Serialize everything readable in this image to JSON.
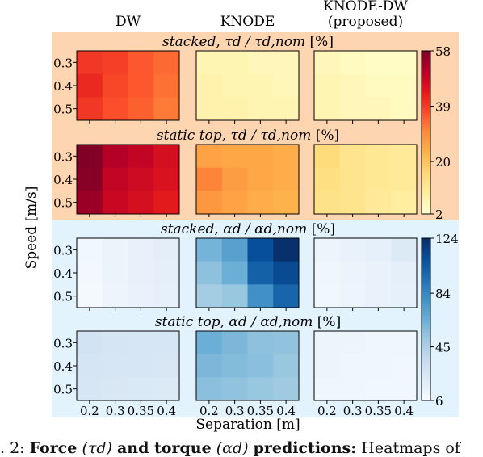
{
  "chart_data": {
    "type": "heatmap",
    "columns": [
      "DW",
      "KNODE",
      "KNODE-DW\n(proposed)"
    ],
    "ylabel": "Speed [m/s]",
    "xlabel": "Separation [m]",
    "x_ticks": [
      "0.2",
      "0.3",
      "0.35",
      "0.4"
    ],
    "y_ticks": [
      "0.3",
      "0.4",
      "0.5"
    ],
    "groups": [
      {
        "name": "torque",
        "background": "#fdd5b1",
        "colormap": "YlOrRd",
        "vmin": 2,
        "vmax": 58,
        "colorbar_ticks": [
          "58",
          "39",
          "20",
          "2"
        ],
        "colorbar_tick_values": [
          58,
          39,
          20,
          2
        ],
        "rows": [
          {
            "title": "stacked, τd / τd,nom [%]",
            "title_italic": "stacked",
            "title_math": "τd / τd,nom",
            "title_unit": "[%]",
            "grids": [
              [
                [
                  40,
                  39,
                  36,
                  34
                ],
                [
                  42,
                  38,
                  36,
                  33
                ],
                [
                  40,
                  37,
                  35,
                  32
                ]
              ],
              [
                [
                  6,
                  6,
                  5,
                  5
                ],
                [
                  7,
                  6,
                  6,
                  5
                ],
                [
                  7,
                  7,
                  6,
                  6
                ]
              ],
              [
                [
                  5,
                  4,
                  3,
                  3
                ],
                [
                  6,
                  5,
                  4,
                  4
                ],
                [
                  6,
                  5,
                  5,
                  4
                ]
              ]
            ]
          },
          {
            "title": "static top, τd / τd,nom [%]",
            "title_italic": "static top",
            "title_math": "τd / τd,nom",
            "title_unit": "[%]",
            "grids": [
              [
                [
                  58,
                  52,
                  50,
                  47
                ],
                [
                  57,
                  50,
                  48,
                  46
                ],
                [
                  55,
                  49,
                  47,
                  44
                ]
              ],
              [
                [
                  26,
                  25,
                  25,
                  24
                ],
                [
                  31,
                  27,
                  25,
                  24
                ],
                [
                  28,
                  26,
                  24,
                  23
                ]
              ],
              [
                [
                  15,
                  12,
                  11,
                  10
                ],
                [
                  14,
                  12,
                  11,
                  10
                ],
                [
                  13,
                  12,
                  10,
                  9
                ]
              ]
            ]
          }
        ]
      },
      {
        "name": "force",
        "background": "#e3f3fd",
        "colormap": "Blues",
        "vmin": 6,
        "vmax": 124,
        "colorbar_ticks": [
          "124",
          "84",
          "45",
          "6"
        ],
        "colorbar_tick_values": [
          124,
          84,
          45,
          6
        ],
        "rows": [
          {
            "title": "stacked, αd / αd,nom [%]",
            "title_italic": "stacked",
            "title_math": "αd / αd,nom",
            "title_unit": "[%]",
            "grids": [
              [
                [
                  10,
                  13,
                  15,
                  18
                ],
                [
                  9,
                  13,
                  15,
                  17
                ],
                [
                  8,
                  12,
                  14,
                  16
                ]
              ],
              [
                [
                  62,
                  72,
                  110,
                  124
                ],
                [
                  55,
                  65,
                  102,
                  112
                ],
                [
                  48,
                  52,
                  80,
                  100
                ]
              ],
              [
                [
                  12,
                  14,
                  16,
                  22
                ],
                [
                  11,
                  13,
                  14,
                  17
                ],
                [
                  10,
                  12,
                  14,
                  16
                ]
              ]
            ]
          },
          {
            "title": "static top, αd / αd,nom [%]",
            "title_italic": "static top",
            "title_math": "αd / αd,nom",
            "title_unit": "[%]",
            "grids": [
              [
                [
                  28,
                  26,
                  25,
                  25
                ],
                [
                  26,
                  25,
                  25,
                  24
                ],
                [
                  25,
                  24,
                  23,
                  22
                ]
              ],
              [
                [
                  65,
                  60,
                  55,
                  54
                ],
                [
                  60,
                  58,
                  56,
                  52
                ],
                [
                  56,
                  54,
                  52,
                  50
                ]
              ],
              [
                [
                  12,
                  12,
                  11,
                  11
                ],
                [
                  12,
                  11,
                  11,
                  10
                ],
                [
                  11,
                  11,
                  10,
                  10
                ]
              ]
            ]
          }
        ]
      }
    ]
  },
  "caption": {
    "prefix": ". 2: ",
    "bold_text": "Force",
    "math_force": "(τd)",
    "and_text": "and torque",
    "math_torque": "(αd)",
    "bold_end": "predictions:",
    "rest": "Heatmaps of"
  }
}
